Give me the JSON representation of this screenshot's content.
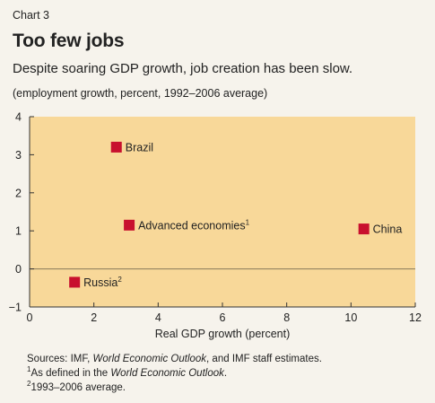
{
  "header": {
    "chart_label": "Chart 3",
    "title": "Too few jobs",
    "subtitle": "Despite soaring GDP growth, job creation has been slow.",
    "note": "(employment growth, percent, 1992–2006 average)"
  },
  "chart_data": {
    "type": "scatter",
    "xlabel": "Real GDP growth (percent)",
    "ylabel": "",
    "xlim": [
      0,
      12
    ],
    "ylim": [
      -1,
      4
    ],
    "xticks": [
      0,
      2,
      4,
      6,
      8,
      10,
      12
    ],
    "yticks": [
      -1,
      0,
      1,
      2,
      3,
      4
    ],
    "grid": false,
    "points": [
      {
        "label": "Brazil",
        "sup": "",
        "x": 2.7,
        "y": 3.2
      },
      {
        "label": "Advanced economies",
        "sup": "1",
        "x": 3.1,
        "y": 1.15
      },
      {
        "label": "China",
        "sup": "",
        "x": 10.4,
        "y": 1.05
      },
      {
        "label": "Russia",
        "sup": "2",
        "x": 1.4,
        "y": -0.35
      }
    ],
    "colors": {
      "plot_bg": "#f8d899",
      "marker": "#c8102e",
      "page_bg": "#f6f3ec"
    }
  },
  "footer": {
    "source_prefix": "Sources: IMF, ",
    "source_italic": "World Economic Outlook",
    "source_suffix": ", and IMF staff estimates.",
    "fn1_mark": "1",
    "fn1_prefix": "As defined in the ",
    "fn1_italic": "World Economic Outlook",
    "fn1_suffix": ".",
    "fn2_mark": "2",
    "fn2_text": "1993–2006 average."
  }
}
